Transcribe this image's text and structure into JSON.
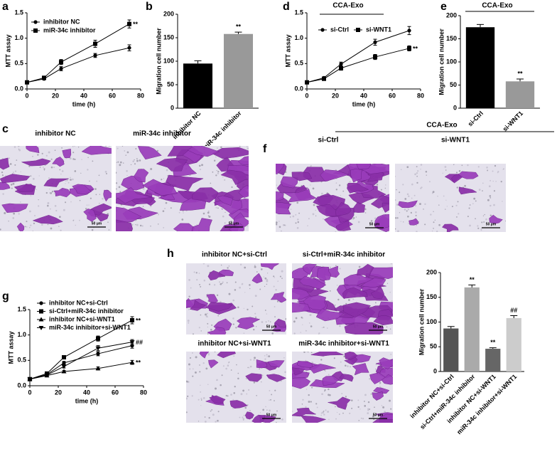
{
  "chart_data": [
    {
      "type": "line",
      "x_label": "time (h)",
      "y_label": "MTT assay",
      "x": [
        0,
        12,
        24,
        48,
        72
      ],
      "xlim": [
        0,
        80
      ],
      "xticks": [
        0,
        20,
        40,
        60,
        80
      ],
      "ylim": [
        0,
        1.5
      ],
      "yticks": [
        {
          "value": 0,
          "label": "0.0"
        },
        0.5,
        {
          "value": 1,
          "label": "1.0"
        },
        1.5
      ],
      "legend": "upper left",
      "series": [
        {
          "name": "inhibitor NC",
          "color": "#000000",
          "marker": "circle",
          "values": [
            0.13,
            0.2,
            0.4,
            0.66,
            0.81
          ],
          "errors": [
            0.01,
            0.02,
            0.04,
            0.04,
            0.06
          ],
          "annotations": [
            null,
            null,
            null,
            null,
            null
          ]
        },
        {
          "name": "miR-34c inhibitor",
          "color": "#000000",
          "marker": "square",
          "values": [
            0.13,
            0.22,
            0.53,
            0.89,
            1.28
          ],
          "errors": [
            0.01,
            0.03,
            0.05,
            0.07,
            0.08
          ],
          "annotations": [
            null,
            null,
            null,
            null,
            "**"
          ]
        }
      ]
    },
    {
      "type": "bar",
      "y_label": "Migration cell number",
      "categories": [
        "inhibitor NC",
        "miR-34c inhibitor"
      ],
      "values": [
        95,
        158
      ],
      "errors": [
        6,
        4
      ],
      "colors": [
        "#000000",
        "#999999"
      ],
      "annotations": [
        null,
        "**"
      ],
      "ylim": [
        0,
        200
      ],
      "yticks": [
        0,
        50,
        100,
        150,
        200
      ]
    },
    {
      "type": "line",
      "title": "CCA-Exo",
      "x_label": "time (h)",
      "y_label": "MTT assay",
      "x": [
        0,
        12,
        24,
        48,
        72
      ],
      "xlim": [
        0,
        80
      ],
      "xticks": [
        0,
        20,
        40,
        60,
        80
      ],
      "ylim": [
        0,
        1.5
      ],
      "yticks": [
        {
          "value": 0,
          "label": "0.0"
        },
        0.5,
        {
          "value": 1,
          "label": "1.0"
        },
        1.5
      ],
      "legend": "upper left",
      "series": [
        {
          "name": "si-Ctrl",
          "color": "#000000",
          "marker": "circle",
          "values": [
            0.13,
            0.22,
            0.49,
            0.92,
            1.15
          ],
          "errors": [
            0.01,
            0.02,
            0.04,
            0.06,
            0.08
          ],
          "annotations": [
            null,
            null,
            null,
            null,
            null
          ]
        },
        {
          "name": "si-WNT1",
          "color": "#000000",
          "marker": "square",
          "values": [
            0.13,
            0.2,
            0.41,
            0.63,
            0.8
          ],
          "errors": [
            0.01,
            0.02,
            0.04,
            0.05,
            0.05
          ],
          "annotations": [
            null,
            null,
            null,
            null,
            "**"
          ]
        }
      ]
    },
    {
      "type": "bar",
      "title": "CCA-Exo",
      "y_label": "Migration cell number",
      "categories": [
        "si-Ctrl",
        "si-WNT1"
      ],
      "values": [
        175,
        58
      ],
      "errors": [
        6,
        5
      ],
      "colors": [
        "#000000",
        "#999999"
      ],
      "annotations": [
        null,
        "**"
      ],
      "ylim": [
        0,
        200
      ],
      "yticks": [
        0,
        50,
        100,
        150,
        200
      ]
    },
    {
      "type": "line",
      "x_label": "time (h)",
      "y_label": "MTT assay",
      "x": [
        0,
        12,
        24,
        48,
        72
      ],
      "xlim": [
        0,
        80
      ],
      "xticks": [
        0,
        20,
        40,
        60,
        80
      ],
      "ylim": [
        0,
        1.5
      ],
      "yticks": [
        {
          "value": 0,
          "label": "0.0"
        },
        0.5,
        {
          "value": 1,
          "label": "1.0"
        },
        1.5
      ],
      "legend": "upper left",
      "series": [
        {
          "name": "inhibitor NC+si-Ctrl",
          "color": "#000000",
          "marker": "circle",
          "values": [
            0.13,
            0.22,
            0.45,
            0.63,
            0.79
          ],
          "errors": [
            0.01,
            0.02,
            0.03,
            0.04,
            0.05
          ],
          "annotations": [
            null,
            null,
            null,
            null,
            null
          ]
        },
        {
          "name": "si-Ctrl+miR-34c inhibitor",
          "color": "#000000",
          "marker": "square",
          "values": [
            0.13,
            0.24,
            0.56,
            0.93,
            1.29
          ],
          "errors": [
            0.01,
            0.02,
            0.03,
            0.05,
            0.07
          ],
          "annotations": [
            null,
            null,
            null,
            null,
            "**"
          ]
        },
        {
          "name": "inhibitor NC+si-WNT1",
          "color": "#000000",
          "marker": "triangle-up",
          "values": [
            0.13,
            0.2,
            0.28,
            0.34,
            0.46
          ],
          "errors": [
            0.01,
            0.02,
            0.02,
            0.03,
            0.04
          ],
          "annotations": [
            null,
            null,
            null,
            null,
            "**"
          ]
        },
        {
          "name": "miR-34c inhibitor+si-WNT1",
          "color": "#000000",
          "marker": "triangle-down",
          "values": [
            0.13,
            0.21,
            0.38,
            0.74,
            0.86
          ],
          "errors": [
            0.01,
            0.02,
            0.03,
            0.05,
            0.05
          ],
          "annotations": [
            null,
            null,
            null,
            null,
            "##"
          ]
        }
      ]
    },
    {
      "type": "bar",
      "y_label": "Migration cell number",
      "categories": [
        "inhibitor NC+si-Ctrl",
        "si-Ctrl+miR-34c inhibitor",
        "inhibitor NC+si-WNT1",
        "miR-34c inhibitor+si-WNT1"
      ],
      "values": [
        87,
        170,
        46,
        108
      ],
      "errors": [
        4,
        5,
        2,
        5
      ],
      "colors": [
        "#555555",
        "#aaaaaa",
        "#666666",
        "#cccccc"
      ],
      "annotations": [
        null,
        "**",
        "**",
        "##"
      ],
      "ylim": [
        0,
        200
      ],
      "yticks": [
        0,
        50,
        100,
        150,
        200
      ]
    }
  ],
  "panel_labels": [
    "a",
    "b",
    "c",
    "d",
    "e",
    "f",
    "g",
    "h"
  ],
  "image_panels": [
    {
      "captions": [
        "inhibitor NC",
        "miR-34c inhibitor"
      ],
      "scale_bars": [
        "50 μm",
        "50 μm"
      ]
    },
    {
      "group": "CCA-Exo",
      "captions": [
        "si-Ctrl",
        "si-WNT1"
      ],
      "scale_bars": [
        "50 μm",
        "50 μm"
      ]
    },
    {
      "captions": [
        "inhibitor NC+si-Ctrl",
        "si-Ctrl+miR-34c  inhibitor",
        "inhibitor NC+si-WNT1",
        "miR-34c  inhibitor+si-WNT1"
      ],
      "scale_bars": [
        "50 μm",
        "50 μm",
        "50 μm",
        "50 μm"
      ]
    }
  ]
}
